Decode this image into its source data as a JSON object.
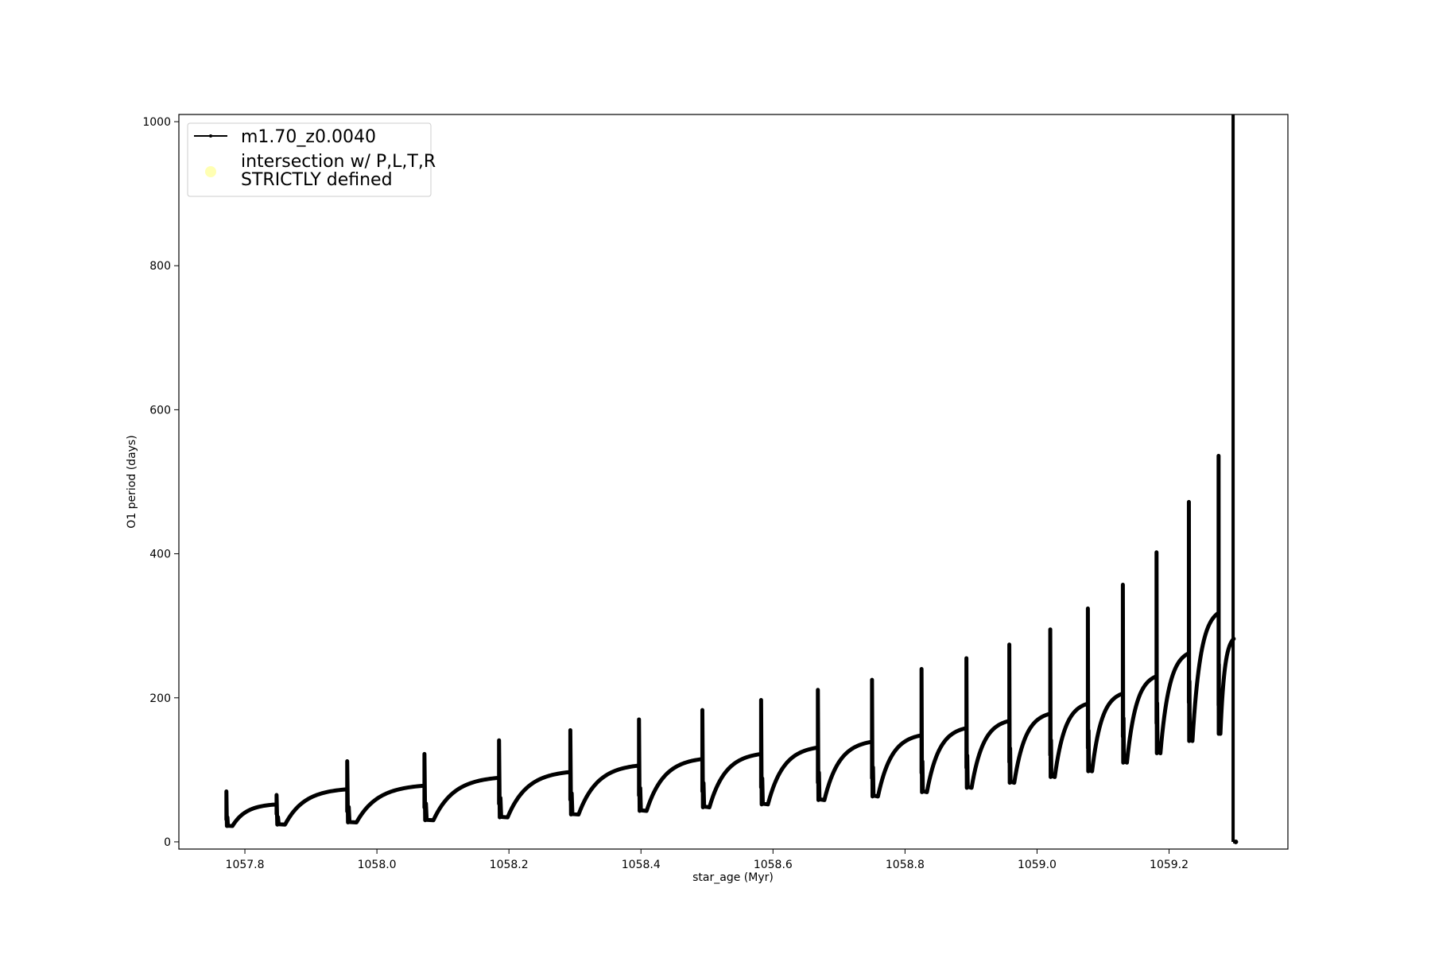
{
  "chart_data": {
    "type": "line",
    "title": "",
    "xlabel": "star_age (Myr)",
    "ylabel": "O1 period (days)",
    "xlim": [
      1057.7,
      1059.38
    ],
    "ylim": [
      -10,
      1010
    ],
    "xticks": [
      1057.8,
      1058.0,
      1058.2,
      1058.4,
      1058.6,
      1058.8,
      1059.0,
      1059.2
    ],
    "yticks": [
      0,
      200,
      400,
      600,
      800,
      1000
    ],
    "xtick_labels": [
      "1057.8",
      "1058.0",
      "1058.2",
      "1058.4",
      "1058.6",
      "1058.8",
      "1059.0",
      "1059.2"
    ],
    "ytick_labels": [
      "0",
      "200",
      "400",
      "600",
      "800",
      "1000"
    ],
    "grid": false,
    "legend": {
      "placement": "top-left",
      "entries": [
        {
          "label": "m1.70_z0.0040",
          "marker": "line-dot",
          "color": "#000000"
        },
        {
          "label_line1": "intersection w/ P,L,T,R",
          "label_line2": "STRICTLY defined",
          "marker": "circle",
          "color": "#ffffb3"
        }
      ]
    },
    "series": [
      {
        "name": "m1.70_z0.0040",
        "color": "#000000",
        "pulse_cycles": [
          {
            "start": 1057.772,
            "end": 1057.848,
            "peak": 70,
            "trough": 22,
            "plateau": 52
          },
          {
            "start": 1057.848,
            "end": 1057.955,
            "peak": 65,
            "trough": 24,
            "plateau": 73
          },
          {
            "start": 1057.955,
            "end": 1058.072,
            "peak": 112,
            "trough": 27,
            "plateau": 78
          },
          {
            "start": 1058.072,
            "end": 1058.185,
            "peak": 122,
            "trough": 30,
            "plateau": 89
          },
          {
            "start": 1058.185,
            "end": 1058.293,
            "peak": 141,
            "trough": 34,
            "plateau": 97
          },
          {
            "start": 1058.293,
            "end": 1058.397,
            "peak": 155,
            "trough": 38,
            "plateau": 106
          },
          {
            "start": 1058.397,
            "end": 1058.493,
            "peak": 170,
            "trough": 43,
            "plateau": 115
          },
          {
            "start": 1058.493,
            "end": 1058.582,
            "peak": 183,
            "trough": 48,
            "plateau": 122
          },
          {
            "start": 1058.582,
            "end": 1058.668,
            "peak": 197,
            "trough": 52,
            "plateau": 131
          },
          {
            "start": 1058.668,
            "end": 1058.75,
            "peak": 211,
            "trough": 58,
            "plateau": 139
          },
          {
            "start": 1058.75,
            "end": 1058.825,
            "peak": 225,
            "trough": 63,
            "plateau": 148
          },
          {
            "start": 1058.825,
            "end": 1058.893,
            "peak": 240,
            "trough": 69,
            "plateau": 158
          },
          {
            "start": 1058.893,
            "end": 1058.958,
            "peak": 255,
            "trough": 75,
            "plateau": 168
          },
          {
            "start": 1058.958,
            "end": 1059.02,
            "peak": 274,
            "trough": 82,
            "plateau": 178
          },
          {
            "start": 1059.02,
            "end": 1059.077,
            "peak": 295,
            "trough": 90,
            "plateau": 192
          },
          {
            "start": 1059.077,
            "end": 1059.13,
            "peak": 324,
            "trough": 98,
            "plateau": 206
          },
          {
            "start": 1059.13,
            "end": 1059.181,
            "peak": 357,
            "trough": 110,
            "plateau": 230
          },
          {
            "start": 1059.181,
            "end": 1059.23,
            "peak": 402,
            "trough": 123,
            "plateau": 262
          },
          {
            "start": 1059.23,
            "end": 1059.275,
            "peak": 472,
            "trough": 140,
            "plateau": 318
          },
          {
            "start": 1059.275,
            "end": 1059.298,
            "peak": 536,
            "trough": 150,
            "plateau": 282
          }
        ],
        "final_spike": {
          "x": 1059.297,
          "top": 1000,
          "bottom": 0,
          "end_x": 1059.301
        }
      }
    ]
  }
}
